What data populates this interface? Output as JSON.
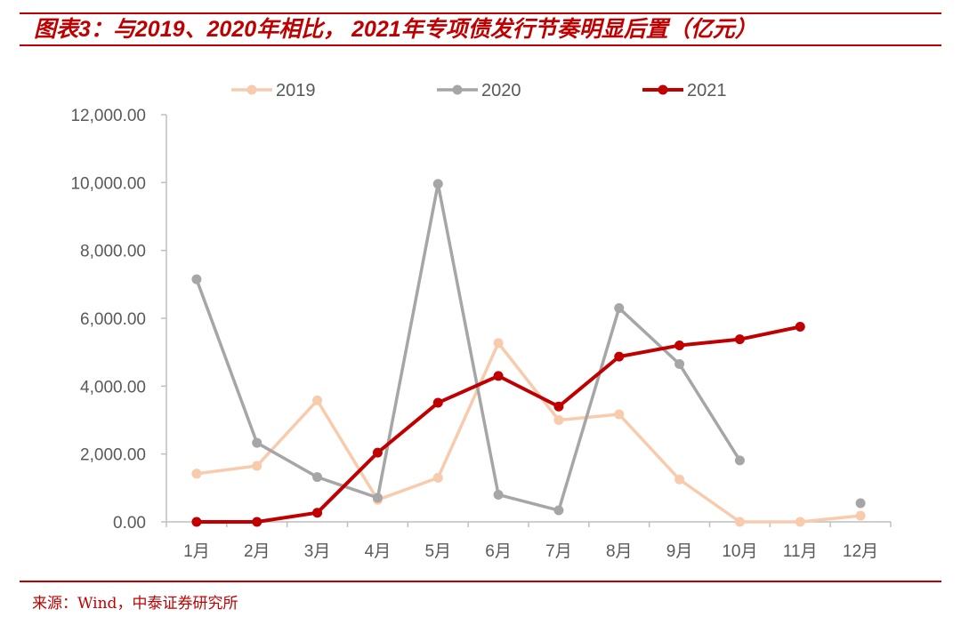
{
  "figure": {
    "title": "图表3：与2019、2020年相比， 2021年专项债发行节奏明显后置（亿元）",
    "source": "来源：Wind，中泰证券研究所"
  },
  "chart_data": {
    "type": "line",
    "categories": [
      "1月",
      "2月",
      "3月",
      "4月",
      "5月",
      "6月",
      "7月",
      "8月",
      "9月",
      "10月",
      "11月",
      "12月"
    ],
    "ylim": [
      0,
      12000
    ],
    "y_ticks": [
      "0.00",
      "2,000.00",
      "4,000.00",
      "6,000.00",
      "8,000.00",
      "10,000.00",
      "12,000.00"
    ],
    "y_tick_values": [
      0,
      2000,
      4000,
      6000,
      8000,
      10000,
      12000
    ],
    "grid": false,
    "legend_position": "top",
    "series": [
      {
        "name": "2019",
        "color": "#f8cbad",
        "values": [
          1420,
          1650,
          3580,
          650,
          1300,
          5270,
          3000,
          3170,
          1250,
          0,
          0,
          180
        ]
      },
      {
        "name": "2020",
        "color": "#a6a6a6",
        "values": [
          7150,
          2330,
          1320,
          710,
          9960,
          800,
          340,
          6300,
          4650,
          1810,
          null,
          550
        ]
      },
      {
        "name": "2021",
        "color": "#c00000",
        "values": [
          0,
          0,
          270,
          2040,
          3510,
          4300,
          3400,
          4870,
          5200,
          5380,
          5750,
          null
        ]
      }
    ]
  }
}
